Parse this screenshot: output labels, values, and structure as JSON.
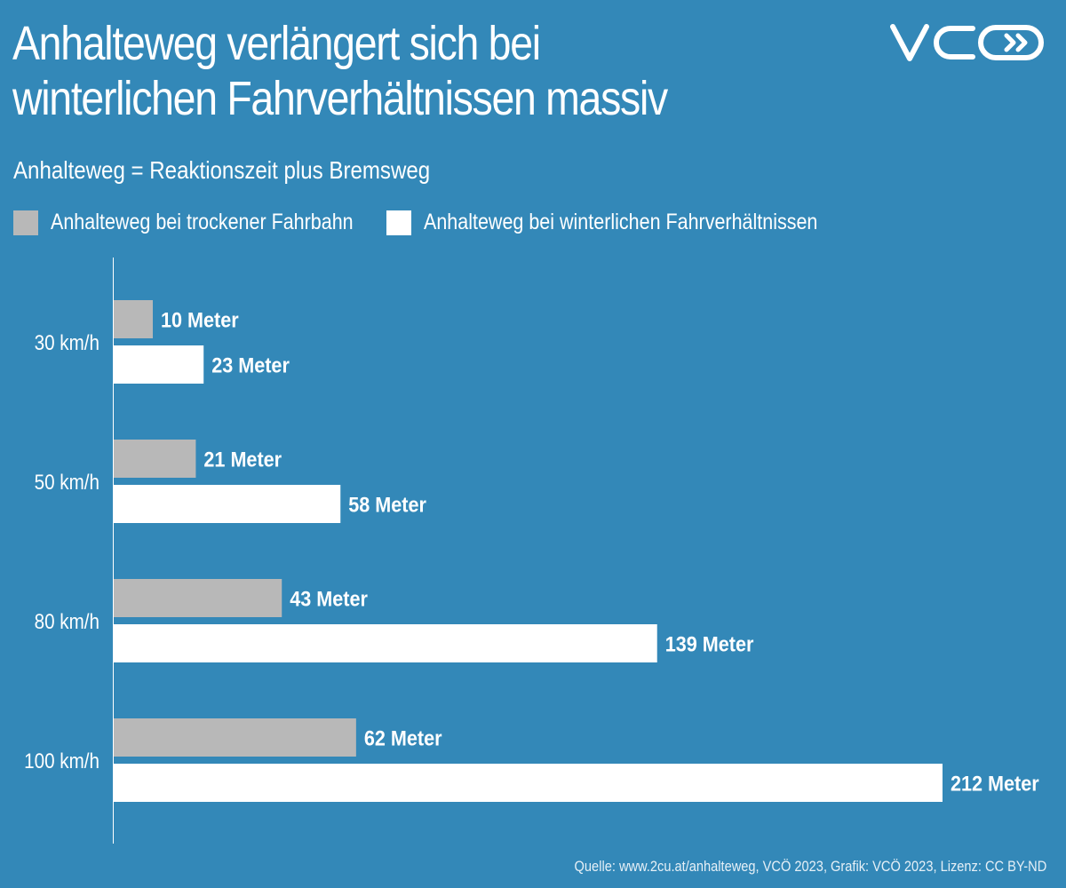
{
  "header": {
    "title_line1": "Anhalteweg verlängert sich bei",
    "title_line2": "winterlichen Fahrverhältnissen massiv",
    "subtitle": "Anhalteweg = Reaktionszeit plus Bremsweg",
    "logo": "VCÖ"
  },
  "footer": {
    "source": "Quelle: www.2cu.at/anhalteweg, VCÖ 2023, Grafik: VCÖ 2023, Lizenz: CC BY-ND"
  },
  "colors": {
    "background": "#3388b8",
    "dry": "#b8b8b8",
    "winter": "#ffffff",
    "text": "#ffffff"
  },
  "chart_data": {
    "type": "bar",
    "orientation": "horizontal",
    "title": "Anhalteweg verlängert sich bei winterlichen Fahrverhältnissen massiv",
    "subtitle": "Anhalteweg = Reaktionszeit plus Bremsweg",
    "xlabel": "",
    "ylabel": "",
    "categories": [
      "30 km/h",
      "50 km/h",
      "80 km/h",
      "100 km/h"
    ],
    "series": [
      {
        "name": "Anhalteweg bei trockener Fahrbahn",
        "color": "#b8b8b8",
        "values": [
          10,
          21,
          43,
          62
        ],
        "labels": [
          "10 Meter",
          "21 Meter",
          "43 Meter",
          "62 Meter"
        ]
      },
      {
        "name": "Anhalteweg bei winterlichen Fahrverhältnissen",
        "color": "#ffffff",
        "values": [
          23,
          58,
          139,
          212
        ],
        "labels": [
          "23 Meter",
          "58 Meter",
          "139 Meter",
          "212 Meter"
        ]
      }
    ],
    "unit": "Meter",
    "xlim": [
      0,
      212
    ],
    "grid": false,
    "legend": "top-left"
  }
}
